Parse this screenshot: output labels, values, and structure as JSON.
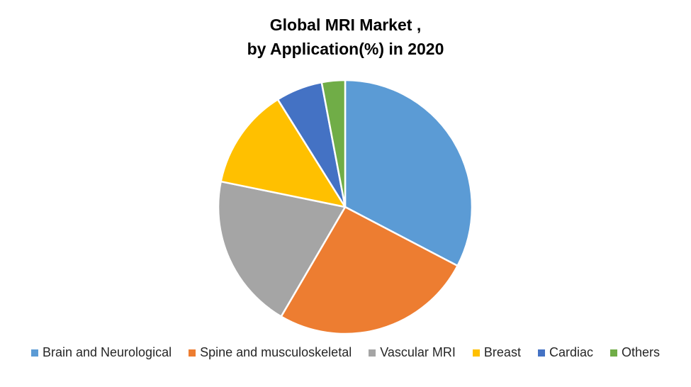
{
  "chart_data": {
    "type": "pie",
    "title_lines": [
      "Global MRI Market ,",
      "by Application(%) in 2020"
    ],
    "categories": [
      "Brain and Neurological",
      "Spine and musculoskeletal",
      "Vascular MRI",
      "Breast",
      "Cardiac",
      "Others"
    ],
    "values": [
      33,
      26,
      20,
      13,
      6,
      3
    ],
    "colors": [
      "#5B9BD5",
      "#ED7D31",
      "#A5A5A5",
      "#FFC000",
      "#4472C4",
      "#70AD47"
    ],
    "legend_position": "bottom",
    "start_angle": "12 o'clock",
    "direction": "clockwise"
  }
}
